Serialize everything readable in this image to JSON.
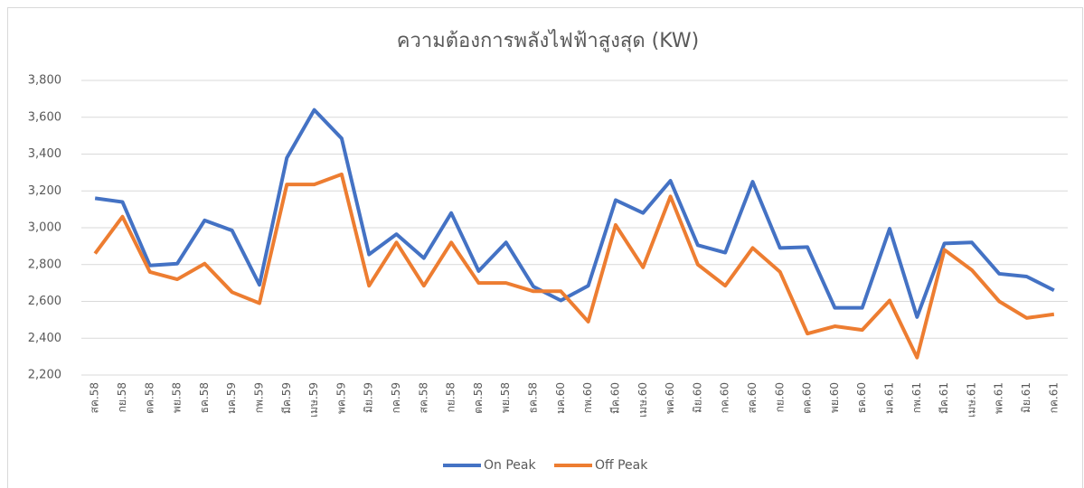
{
  "chart_data": {
    "type": "line",
    "title": "ความต้องการพลังไฟฟ้าสูงสุด (KW)",
    "categories": [
      "สค.58",
      "กย.58",
      "ตค.58",
      "พย.58",
      "ธค.58",
      "มค.59",
      "กพ.59",
      "มีค.59",
      "เมษ.59",
      "พค.59",
      "มิย.59",
      "กค.59",
      "สค.58",
      "กย.58",
      "ตค.58",
      "พย.58",
      "ธค.58",
      "มค.60",
      "กพ.60",
      "มีค.60",
      "เมษ.60",
      "พค.60",
      "มิย.60",
      "กค.60",
      "สค.60",
      "กย.60",
      "ตค.60",
      "พย.60",
      "ธค.60",
      "มค.61",
      "กพ.61",
      "มีค.61",
      "เมษ.61",
      "พค.61",
      "มิย.61",
      "กค.61"
    ],
    "series": [
      {
        "name": "On Peak",
        "color": "#4472c4",
        "values": [
          3160,
          3140,
          2795,
          2805,
          3040,
          2985,
          2690,
          3380,
          3640,
          3485,
          2855,
          2965,
          2835,
          3080,
          2765,
          2920,
          2680,
          2605,
          2685,
          3150,
          3080,
          3255,
          2905,
          2865,
          3250,
          2890,
          2895,
          2565,
          2565,
          2995,
          2515,
          2915,
          2920,
          2750,
          2735,
          2660
        ]
      },
      {
        "name": "Off Peak",
        "color": "#ed7d31",
        "values": [
          2860,
          3060,
          2760,
          2720,
          2805,
          2650,
          2590,
          3235,
          3235,
          3290,
          2685,
          2920,
          2685,
          2920,
          2700,
          2700,
          2655,
          2655,
          2490,
          3015,
          2785,
          3170,
          2800,
          2685,
          2890,
          2760,
          2425,
          2465,
          2445,
          2605,
          2295,
          2880,
          2770,
          2600,
          2510,
          2530
        ]
      }
    ],
    "ylim": [
      2200,
      3800
    ],
    "yticks": [
      {
        "value": 2200,
        "label": "2,200"
      },
      {
        "value": 2400,
        "label": "2,400"
      },
      {
        "value": 2600,
        "label": "2,600"
      },
      {
        "value": 2800,
        "label": "2,800"
      },
      {
        "value": 3000,
        "label": "3,000"
      },
      {
        "value": 3200,
        "label": "3,200"
      },
      {
        "value": 3400,
        "label": "3,400"
      },
      {
        "value": 3600,
        "label": "3,600"
      },
      {
        "value": 3800,
        "label": "3,800"
      }
    ],
    "grid": true,
    "legend": "bottom"
  }
}
